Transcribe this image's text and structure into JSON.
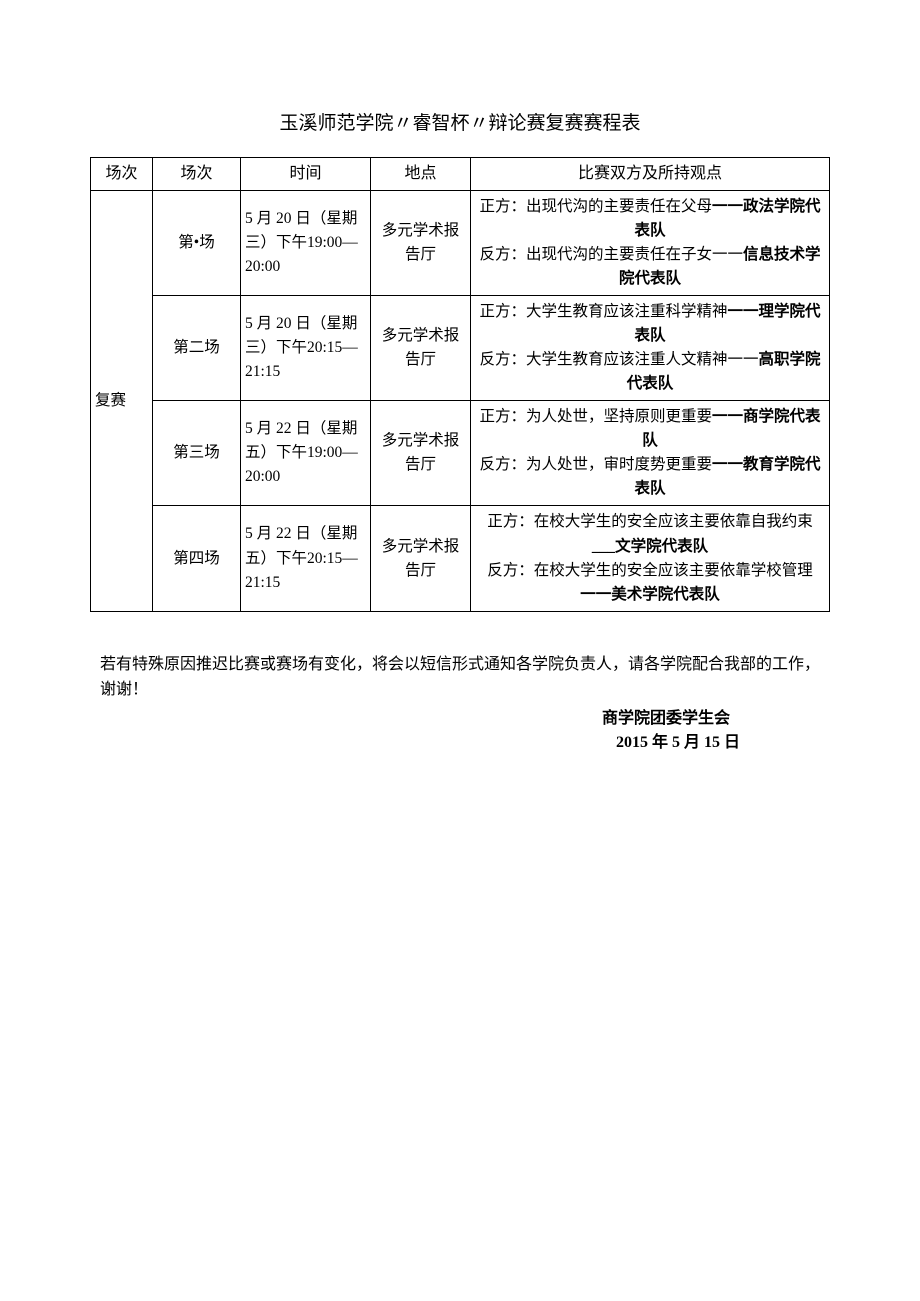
{
  "title": "玉溪师范学院〃睿智杯〃辩论赛复赛赛程表",
  "headers": {
    "stage": "场次",
    "round": "场次",
    "time": "时间",
    "location": "地点",
    "description": "比赛双方及所持观点"
  },
  "stage_label": "复赛",
  "rows": [
    {
      "round": "第•场",
      "time": "5 月 20 日（星期三）下午19:00—20:00",
      "location": "多元学术报告厅",
      "pos_prefix": "正方：出现代沟的主要责任在父母",
      "pos_team": "一一政法学院代表队",
      "neg_prefix": "反方：出现代沟的主要责任在子女一一",
      "neg_team": "信息技术学院代表队"
    },
    {
      "round": "第二场",
      "time": "5 月 20 日（星期三）下午20:15—21:15",
      "location": "多元学术报告厅",
      "pos_prefix": "正方：大学生教育应该注重科学精神",
      "pos_team": "一一理学院代表队",
      "neg_prefix": "反方：大学生教育应该注重人文精神一一",
      "neg_team": "高职学院代表队"
    },
    {
      "round": "第三场",
      "time": "5 月 22 日（星期五）下午19:00—20:00",
      "location": "多元学术报告厅",
      "pos_prefix": "正方：为人处世，坚持原则更重要",
      "pos_team": "一一商学院代表队",
      "neg_prefix": "反方：为人处世，审时度势更重要",
      "neg_team": "一一教育学院代表队"
    },
    {
      "round": "第四场",
      "time": "5 月 22 日（星期五）下午20:15—21:15",
      "location": "多元学术报告厅",
      "pos_prefix": "正方：在校大学生的安全应该主要依靠自我约束",
      "pos_team": "___文学院代表队",
      "neg_prefix": "反方：在校大学生的安全应该主要依靠学校管理",
      "neg_team": "一一美术学院代表队"
    }
  ],
  "note": "若有特殊原因推迟比赛或赛场有变化，将会以短信形式通知各学院负责人，请各学院配合我部的工作，谢谢！",
  "signature": "商学院团委学生会",
  "date": "2015 年 5 月 15 日"
}
